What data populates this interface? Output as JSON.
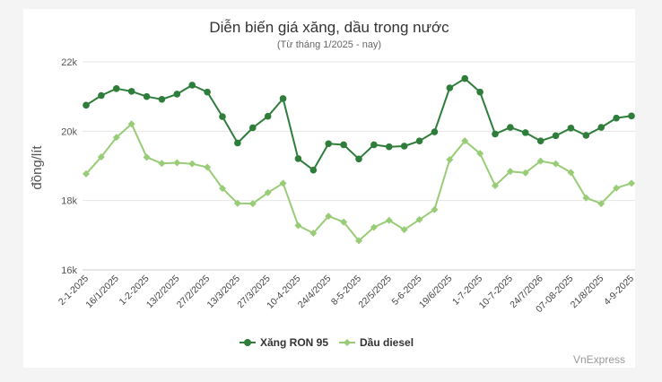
{
  "chart_data": {
    "type": "line",
    "title": "Diễn biến giá xăng, dầu trong nước",
    "subtitle": "(Từ tháng 1/2025 - nay)",
    "ylabel": "đồng/lít",
    "xlabel": "",
    "ylim": [
      16000,
      22000
    ],
    "yticks": [
      16000,
      18000,
      20000,
      22000
    ],
    "ytick_labels": [
      "16k",
      "18k",
      "20k",
      "22k"
    ],
    "grid": true,
    "legend": "bottom",
    "credit": "VnExpress",
    "x_tick_labels": [
      "2-1-2025",
      "16/1/2025",
      "1-2-2025",
      "13/2/2025",
      "27/2/2025",
      "13/3/2025",
      "27/3/2025",
      "10-4-2025",
      "24/4/2025",
      "8-5-2025",
      "22/5/2025",
      "5-6-2025",
      "19/6/2025",
      "1-7-2025",
      "10-7-2025",
      "24/7/2026",
      "07-08-2025",
      "21/8/2025",
      "4-9-2025"
    ],
    "series": [
      {
        "name": "Xăng RON 95",
        "color": "#2e7d3a",
        "values": [
          20750,
          21030,
          21230,
          21150,
          21000,
          20920,
          21070,
          21330,
          21130,
          20420,
          19660,
          20100,
          20430,
          20940,
          19210,
          18880,
          19640,
          19610,
          19200,
          19610,
          19550,
          19570,
          19720,
          19980,
          21250,
          21520,
          21130,
          19920,
          20110,
          19960,
          19720,
          19870,
          20090,
          19880,
          20110,
          20380,
          20440
        ]
      },
      {
        "name": "Dầu diesel",
        "color": "#99cc77",
        "values": [
          18770,
          19260,
          19820,
          20210,
          19250,
          19070,
          19090,
          19060,
          18960,
          18350,
          17920,
          17910,
          18230,
          18500,
          17280,
          17060,
          17550,
          17380,
          16840,
          17230,
          17430,
          17160,
          17450,
          17740,
          19180,
          19720,
          19360,
          18430,
          18840,
          18800,
          19140,
          19060,
          18810,
          18080,
          17910,
          18360,
          18500
        ]
      }
    ]
  }
}
